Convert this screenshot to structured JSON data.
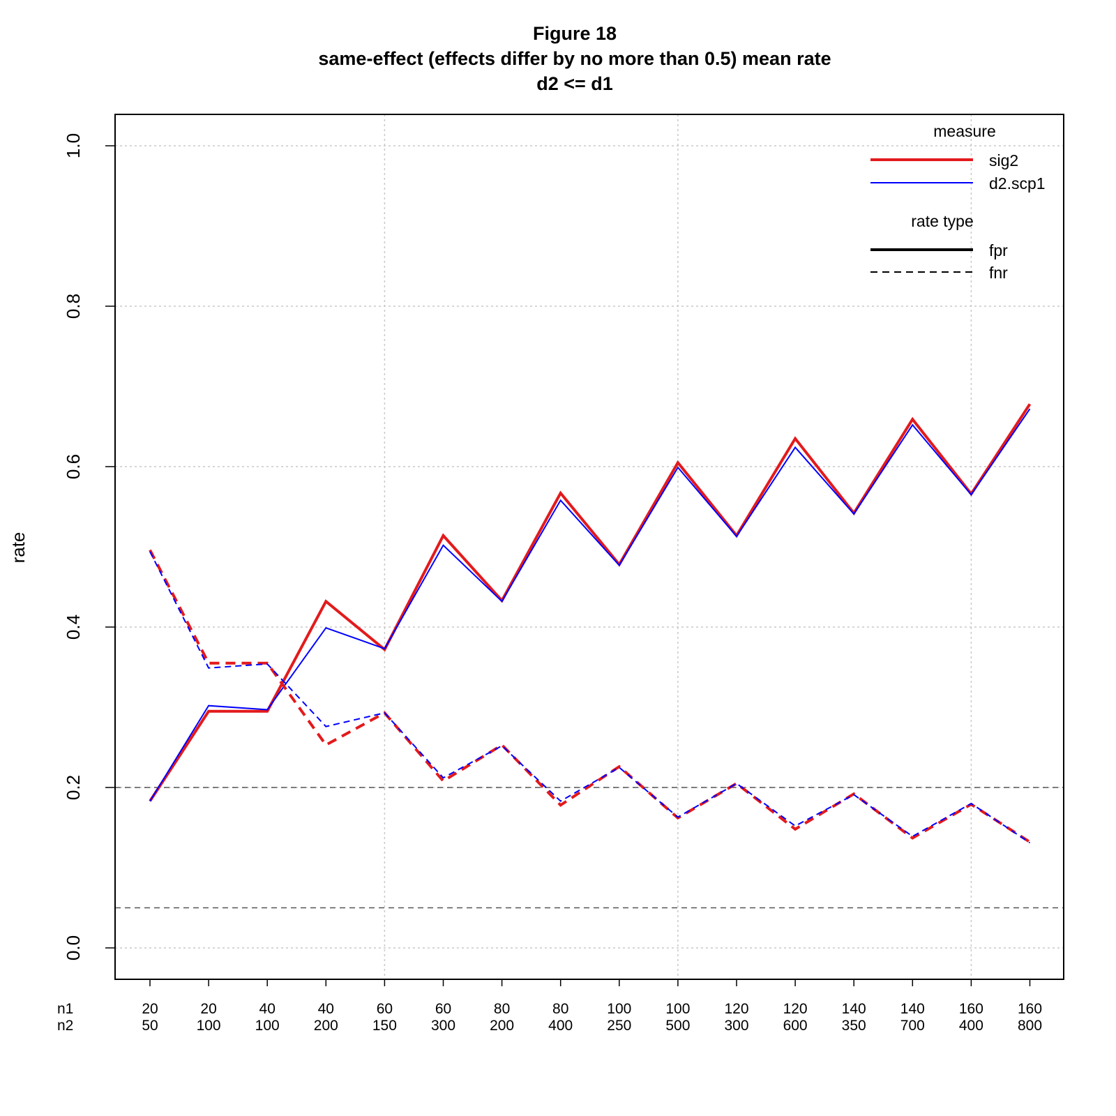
{
  "chart_data": {
    "type": "line",
    "title": "Figure 18",
    "subtitle": "same-effect (effects differ by no more than 0.5) mean rate",
    "subtitle2": "d2 <= d1",
    "xlabel": "",
    "ylabel": "rate",
    "ylim": [
      -0.04,
      1.04
    ],
    "yticks": [
      "0.0",
      "0.2",
      "0.4",
      "0.6",
      "0.8",
      "1.0"
    ],
    "x_row_labels": [
      "n1",
      "n2"
    ],
    "n1": [
      "20",
      "20",
      "40",
      "40",
      "60",
      "60",
      "80",
      "80",
      "100",
      "100",
      "120",
      "120",
      "140",
      "140",
      "160",
      "160"
    ],
    "n2": [
      "50",
      "100",
      "100",
      "200",
      "150",
      "300",
      "200",
      "400",
      "250",
      "500",
      "300",
      "600",
      "350",
      "700",
      "400",
      "800"
    ],
    "grid": true,
    "reference_lines": [
      0.2,
      0.05
    ],
    "series": [
      {
        "name": "sig2 fpr",
        "measure": "sig2",
        "rate_type": "fpr",
        "color": "#e31a1c",
        "values": [
          0.183,
          0.295,
          0.295,
          0.432,
          0.372,
          0.514,
          0.433,
          0.567,
          0.478,
          0.605,
          0.514,
          0.635,
          0.542,
          0.659,
          0.566,
          0.678
        ]
      },
      {
        "name": "d2.scp1 fpr",
        "measure": "d2.scp1",
        "rate_type": "fpr",
        "color": "#0000ff",
        "values": [
          0.183,
          0.302,
          0.297,
          0.399,
          0.373,
          0.502,
          0.432,
          0.558,
          0.477,
          0.599,
          0.513,
          0.624,
          0.541,
          0.652,
          0.565,
          0.672
        ]
      },
      {
        "name": "sig2 fnr",
        "measure": "sig2",
        "rate_type": "fnr",
        "color": "#e31a1c",
        "values": [
          0.496,
          0.355,
          0.355,
          0.253,
          0.293,
          0.208,
          0.253,
          0.178,
          0.226,
          0.162,
          0.205,
          0.148,
          0.192,
          0.137,
          0.179,
          0.132
        ]
      },
      {
        "name": "d2.scp1 fnr",
        "measure": "d2.scp1",
        "rate_type": "fnr",
        "color": "#0000ff",
        "values": [
          0.494,
          0.349,
          0.354,
          0.276,
          0.293,
          0.212,
          0.252,
          0.183,
          0.225,
          0.163,
          0.205,
          0.152,
          0.191,
          0.139,
          0.18,
          0.131
        ]
      }
    ],
    "legend": {
      "placement": "top-right",
      "measure_title": "measure",
      "measure_items": [
        {
          "label": "sig2",
          "color": "#e31a1c"
        },
        {
          "label": "d2.scp1",
          "color": "#0000ff"
        }
      ],
      "rate_title": "rate type",
      "rate_items": [
        {
          "label": "fpr",
          "style": "solid"
        },
        {
          "label": "fnr",
          "style": "dashed"
        }
      ]
    }
  }
}
